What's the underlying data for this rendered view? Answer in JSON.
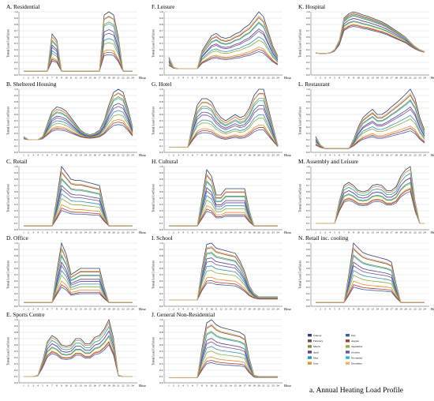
{
  "figure_caption": "a. Annual Heating Load Profile",
  "ylabel": "Termal Load Coefficient",
  "hour_label": "Hour",
  "hours": [
    1,
    2,
    3,
    4,
    5,
    6,
    7,
    8,
    9,
    10,
    11,
    12,
    13,
    14,
    15,
    16,
    17,
    18,
    19,
    20,
    21,
    22,
    23,
    24
  ],
  "y_ticks": [
    "0.0",
    "0.1",
    "0.2",
    "0.3",
    "0.4",
    "0.5",
    "0.6",
    "0.7",
    "0.8",
    "0.9",
    "1.0"
  ],
  "months": [
    "January",
    "February",
    "March",
    "April",
    "May",
    "June",
    "July",
    "August",
    "September",
    "October",
    "November",
    "December"
  ],
  "month_colors": [
    "#2b3f6e",
    "#7a4a3c",
    "#7e8f3a",
    "#5d3f7e",
    "#2f8fb0",
    "#e0902f",
    "#3b5fa0",
    "#b03b3b",
    "#8fae3b",
    "#6a4fa3",
    "#35b0c8",
    "#f0b060"
  ],
  "chart_data": [
    {
      "type": "line",
      "title": "A. Residential",
      "peak_series": [
        0.06,
        0.06,
        0.06,
        0.06,
        0.06,
        0.06,
        0.65,
        0.55,
        0.06,
        0.06,
        0.06,
        0.06,
        0.06,
        0.06,
        0.06,
        0.06,
        0.06,
        0.95,
        1.0,
        0.95,
        0.6,
        0.06,
        0.06,
        0.06
      ],
      "month_scale": [
        1.0,
        0.92,
        0.83,
        0.7,
        0.55,
        0.36,
        0.28,
        0.32,
        0.48,
        0.64,
        0.8,
        0.93
      ],
      "ylim": [
        0,
        1
      ]
    },
    {
      "type": "line",
      "title": "F. Leisure",
      "peak_series": [
        0.28,
        0.12,
        0.1,
        0.1,
        0.1,
        0.1,
        0.1,
        0.38,
        0.5,
        0.62,
        0.66,
        0.6,
        0.58,
        0.6,
        0.65,
        0.68,
        0.75,
        0.8,
        0.9,
        1.0,
        0.92,
        0.68,
        0.45,
        0.3
      ],
      "month_scale": [
        1.0,
        0.9,
        0.82,
        0.7,
        0.56,
        0.38,
        0.3,
        0.34,
        0.5,
        0.66,
        0.8,
        0.93
      ],
      "ylim": [
        0,
        1
      ]
    },
    {
      "type": "line",
      "title": "K. Hospital",
      "peak_series": [
        0.35,
        0.34,
        0.34,
        0.35,
        0.4,
        0.55,
        0.9,
        0.97,
        1.0,
        0.98,
        0.95,
        0.93,
        0.9,
        0.87,
        0.84,
        0.8,
        0.75,
        0.7,
        0.65,
        0.6,
        0.52,
        0.45,
        0.4,
        0.37
      ],
      "month_scale": [
        1.0,
        0.95,
        0.9,
        0.84,
        0.78,
        0.7,
        0.65,
        0.68,
        0.76,
        0.84,
        0.92,
        0.97
      ],
      "ylim": [
        0,
        1
      ]
    },
    {
      "type": "line",
      "title": "B. Sheltered Housing",
      "peak_series": [
        0.25,
        0.2,
        0.2,
        0.2,
        0.25,
        0.45,
        0.65,
        0.72,
        0.7,
        0.65,
        0.55,
        0.45,
        0.35,
        0.3,
        0.28,
        0.3,
        0.35,
        0.5,
        0.75,
        0.95,
        1.0,
        0.95,
        0.7,
        0.4
      ],
      "month_scale": [
        1.0,
        0.92,
        0.85,
        0.72,
        0.58,
        0.4,
        0.3,
        0.35,
        0.5,
        0.66,
        0.82,
        0.93
      ],
      "ylim": [
        0,
        1
      ]
    },
    {
      "type": "line",
      "title": "G. Hotel",
      "peak_series": [
        0.08,
        0.08,
        0.08,
        0.08,
        0.08,
        0.45,
        0.75,
        0.85,
        0.85,
        0.8,
        0.65,
        0.55,
        0.5,
        0.55,
        0.6,
        0.55,
        0.58,
        0.7,
        0.9,
        1.0,
        1.0,
        0.7,
        0.4,
        0.12
      ],
      "month_scale": [
        1.0,
        0.92,
        0.84,
        0.72,
        0.56,
        0.38,
        0.3,
        0.34,
        0.5,
        0.66,
        0.8,
        0.93
      ],
      "ylim": [
        0,
        1
      ]
    },
    {
      "type": "line",
      "title": "L. Restaurant",
      "peak_series": [
        0.25,
        0.12,
        0.06,
        0.06,
        0.06,
        0.06,
        0.06,
        0.06,
        0.2,
        0.4,
        0.55,
        0.62,
        0.68,
        0.6,
        0.6,
        0.65,
        0.72,
        0.78,
        0.85,
        0.92,
        1.0,
        0.85,
        0.55,
        0.35
      ],
      "month_scale": [
        1.0,
        0.9,
        0.82,
        0.7,
        0.56,
        0.38,
        0.3,
        0.34,
        0.5,
        0.66,
        0.8,
        0.93
      ],
      "ylim": [
        0,
        1
      ]
    },
    {
      "type": "line",
      "title": "C. Retail",
      "peak_series": [
        0.06,
        0.06,
        0.06,
        0.06,
        0.06,
        0.06,
        0.06,
        0.5,
        1.0,
        0.9,
        0.8,
        0.78,
        0.78,
        0.76,
        0.74,
        0.72,
        0.7,
        0.35,
        0.06,
        0.06,
        0.06,
        0.06,
        0.06,
        0.06
      ],
      "month_scale": [
        1.0,
        0.9,
        0.8,
        0.68,
        0.54,
        0.36,
        0.26,
        0.3,
        0.46,
        0.62,
        0.78,
        0.92
      ],
      "ylim": [
        0,
        1
      ]
    },
    {
      "type": "line",
      "title": "H. Cultural",
      "peak_series": [
        0.06,
        0.06,
        0.06,
        0.06,
        0.06,
        0.06,
        0.06,
        0.5,
        0.95,
        0.85,
        0.55,
        0.55,
        0.65,
        0.65,
        0.65,
        0.65,
        0.65,
        0.3,
        0.06,
        0.06,
        0.06,
        0.06,
        0.06,
        0.06
      ],
      "month_scale": [
        1.0,
        0.9,
        0.8,
        0.68,
        0.54,
        0.36,
        0.26,
        0.3,
        0.46,
        0.62,
        0.78,
        0.92
      ],
      "ylim": [
        0,
        1
      ]
    },
    {
      "type": "line",
      "title": "M. Assembly and Leisure",
      "peak_series": [
        0.1,
        0.1,
        0.1,
        0.1,
        0.1,
        0.45,
        0.7,
        0.75,
        0.7,
        0.62,
        0.6,
        0.62,
        0.7,
        0.72,
        0.7,
        0.62,
        0.62,
        0.68,
        0.85,
        0.95,
        1.0,
        0.45,
        0.1,
        0.1
      ],
      "month_scale": [
        1.0,
        0.95,
        0.88,
        0.8,
        0.72,
        0.62,
        0.56,
        0.6,
        0.7,
        0.8,
        0.88,
        0.95
      ],
      "ylim": [
        0,
        1
      ]
    },
    {
      "type": "line",
      "title": "D. Office",
      "peak_series": [
        0.06,
        0.06,
        0.06,
        0.06,
        0.06,
        0.06,
        0.06,
        0.55,
        1.0,
        0.82,
        0.5,
        0.55,
        0.6,
        0.6,
        0.6,
        0.6,
        0.6,
        0.3,
        0.06,
        0.06,
        0.06,
        0.06,
        0.06,
        0.06
      ],
      "month_scale": [
        1.0,
        0.9,
        0.8,
        0.68,
        0.54,
        0.36,
        0.26,
        0.3,
        0.46,
        0.62,
        0.78,
        0.92
      ],
      "ylim": [
        0,
        1
      ]
    },
    {
      "type": "line",
      "title": "I. School",
      "peak_series": [
        0.1,
        0.1,
        0.1,
        0.1,
        0.1,
        0.1,
        0.1,
        0.6,
        0.98,
        1.0,
        0.92,
        0.9,
        0.88,
        0.86,
        0.84,
        0.72,
        0.55,
        0.32,
        0.2,
        0.15,
        0.15,
        0.15,
        0.15,
        0.15
      ],
      "month_scale": [
        1.0,
        0.92,
        0.84,
        0.74,
        0.6,
        0.4,
        0.3,
        0.34,
        0.52,
        0.68,
        0.82,
        0.94
      ],
      "ylim": [
        0,
        1
      ]
    },
    {
      "type": "line",
      "title": "N. Retail inc. cooling",
      "peak_series": [
        0.06,
        0.06,
        0.06,
        0.06,
        0.06,
        0.06,
        0.06,
        0.5,
        1.0,
        0.92,
        0.85,
        0.82,
        0.8,
        0.78,
        0.76,
        0.74,
        0.7,
        0.35,
        0.06,
        0.06,
        0.06,
        0.06,
        0.06,
        0.06
      ],
      "month_scale": [
        1.0,
        0.9,
        0.8,
        0.68,
        0.54,
        0.36,
        0.26,
        0.3,
        0.46,
        0.62,
        0.78,
        0.92
      ],
      "ylim": [
        0,
        1
      ]
    },
    {
      "type": "line",
      "title": "E. Sports Centre",
      "peak_series": [
        0.1,
        0.1,
        0.1,
        0.12,
        0.35,
        0.65,
        0.75,
        0.7,
        0.6,
        0.58,
        0.6,
        0.7,
        0.7,
        0.62,
        0.62,
        0.72,
        0.75,
        0.85,
        1.0,
        0.7,
        0.12,
        0.1,
        0.1,
        0.1
      ],
      "month_scale": [
        1.0,
        0.95,
        0.88,
        0.8,
        0.72,
        0.62,
        0.56,
        0.6,
        0.7,
        0.8,
        0.88,
        0.95
      ],
      "ylim": [
        0,
        1
      ]
    },
    {
      "type": "line",
      "title": "J. General Non-Residential",
      "peak_series": [
        0.08,
        0.08,
        0.08,
        0.08,
        0.08,
        0.08,
        0.08,
        0.55,
        0.95,
        1.0,
        0.92,
        0.88,
        0.86,
        0.84,
        0.82,
        0.8,
        0.75,
        0.38,
        0.12,
        0.1,
        0.1,
        0.1,
        0.1,
        0.1
      ],
      "month_scale": [
        1.0,
        0.9,
        0.8,
        0.68,
        0.54,
        0.36,
        0.26,
        0.3,
        0.46,
        0.62,
        0.78,
        0.92
      ],
      "ylim": [
        0,
        1
      ]
    }
  ]
}
